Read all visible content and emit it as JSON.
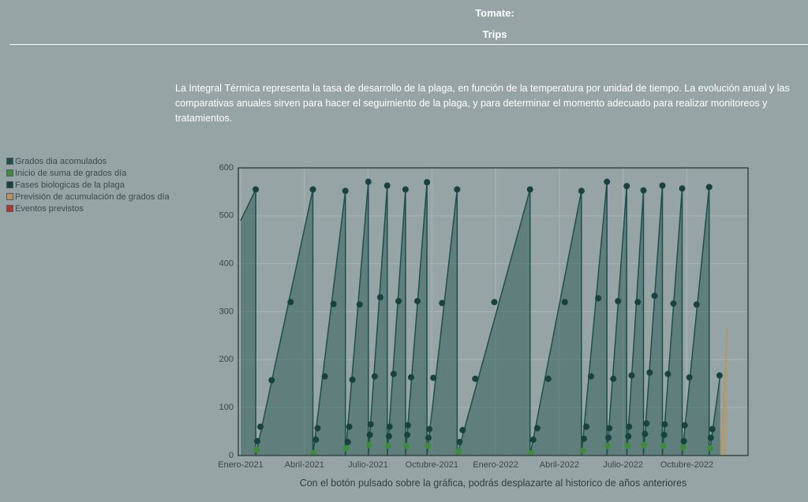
{
  "header": {
    "title": "Tomate:",
    "subtitle": "Trips"
  },
  "description": "La Integral Térmica representa la tasa de desarrollo de la plaga, en función de la temperatura por unidad de tiempo. La evolución anual y las comparativas anuales sirven para hacer el seguimiento de la plaga, y para determinar el momento adecuado para realizar monitoreos y tratamientos.",
  "footnote": "Con el botón pulsado sobre la gráfica, podrás desplazarte al historico de años anteriores",
  "chart_data": {
    "type": "area",
    "xlim": [
      -0.11,
      23.88
    ],
    "ylim": [
      0,
      600
    ],
    "yticks": [
      0,
      100,
      200,
      300,
      400,
      500,
      600
    ],
    "xticks": [
      {
        "value": 0,
        "label": "Enero-2021"
      },
      {
        "value": 3,
        "label": "Abril-2021"
      },
      {
        "value": 6,
        "label": "Julio-2021"
      },
      {
        "value": 9,
        "label": "Octubre-2021"
      },
      {
        "value": 12,
        "label": "Enero-2022"
      },
      {
        "value": 15,
        "label": "Abril-2022"
      },
      {
        "value": 18,
        "label": "Julio-2022"
      },
      {
        "value": 21,
        "label": "Octubre-2022"
      }
    ],
    "grid": true,
    "series": [
      {
        "name": "Grados dia acomulados",
        "type": "area",
        "color": "#1d4f4b",
        "x": [
          0,
          0.71,
          0.71,
          3.4,
          3.4,
          4.93,
          4.93,
          6.01,
          6.01,
          6.9,
          6.9,
          7.76,
          7.76,
          8.77,
          8.77,
          10.19,
          10.19,
          13.62,
          13.62,
          16.04,
          16.04,
          17.24,
          17.24,
          18.17,
          18.17,
          18.96,
          18.96,
          19.85,
          19.85,
          20.78,
          20.78,
          22.05,
          22.05,
          22.57
        ],
        "values": [
          490,
          555,
          0,
          555,
          0,
          552,
          0,
          571,
          0,
          563,
          0,
          555,
          0,
          570,
          0,
          555,
          0,
          555,
          0,
          552,
          0,
          571,
          0,
          562,
          0,
          553,
          0,
          563,
          0,
          557,
          0,
          560,
          0,
          167
        ]
      },
      {
        "name": "Inicio de suma de grados día",
        "type": "scatter",
        "color": "#3d8c3a",
        "x": [
          0.75,
          3.43,
          4.96,
          6.04,
          6.94,
          7.8,
          8.81,
          10.26,
          13.66,
          16.12,
          17.28,
          18.21,
          18.99,
          19.89,
          20.82,
          22.09
        ],
        "values": [
          12,
          5,
          15,
          22,
          20,
          20,
          20,
          8,
          5,
          10,
          20,
          20,
          22,
          20,
          17,
          15
        ]
      },
      {
        "name": "Fases biologicas de la plaga",
        "type": "scatter",
        "color": "#17433f",
        "x": [
          0.78,
          0.93,
          1.46,
          2.35,
          0.71,
          3.54,
          3.62,
          3.96,
          4.37,
          3.4,
          5.04,
          5.11,
          5.26,
          5.6,
          4.93,
          6.08,
          6.12,
          6.31,
          6.57,
          6.01,
          6.98,
          7.01,
          7.2,
          7.43,
          6.9,
          7.84,
          7.87,
          8.02,
          8.32,
          7.76,
          8.84,
          8.88,
          9.07,
          9.48,
          8.77,
          10.3,
          10.45,
          11.04,
          11.94,
          10.19,
          13.77,
          13.96,
          14.48,
          15.26,
          13.62,
          16.16,
          16.27,
          16.49,
          16.83,
          16.04,
          17.31,
          17.35,
          17.54,
          17.76,
          17.24,
          18.25,
          18.28,
          18.4,
          18.69,
          18.17,
          19.03,
          19.1,
          19.25,
          19.48,
          18.96,
          19.93,
          19.96,
          20.11,
          20.37,
          19.85,
          20.86,
          20.9,
          21.12,
          21.46,
          20.78,
          22.13,
          22.2,
          22.54,
          22.05
        ],
        "values": [
          30,
          60,
          157,
          320,
          555,
          33,
          57,
          165,
          316,
          555,
          28,
          60,
          158,
          315,
          552,
          43,
          65,
          165,
          330,
          571,
          40,
          60,
          170,
          322,
          563,
          43,
          63,
          163,
          322,
          555,
          37,
          55,
          162,
          318,
          570,
          28,
          53,
          160,
          320,
          555,
          33,
          57,
          160,
          320,
          555,
          35,
          60,
          165,
          328,
          552,
          37,
          57,
          160,
          322,
          571,
          40,
          60,
          167,
          320,
          562,
          45,
          67,
          173,
          333,
          553,
          43,
          65,
          170,
          317,
          563,
          30,
          63,
          163,
          315,
          557,
          37,
          55,
          167,
          560
        ]
      },
      {
        "name": "Previsión de acumulación de grados día",
        "type": "area",
        "color": "#b8955a",
        "x": [
          22.6,
          22.9
        ],
        "values": [
          0,
          267
        ]
      },
      {
        "name": "Eventos previstos",
        "type": "scatter",
        "color": "#b3382c",
        "x": [],
        "values": []
      }
    ]
  }
}
